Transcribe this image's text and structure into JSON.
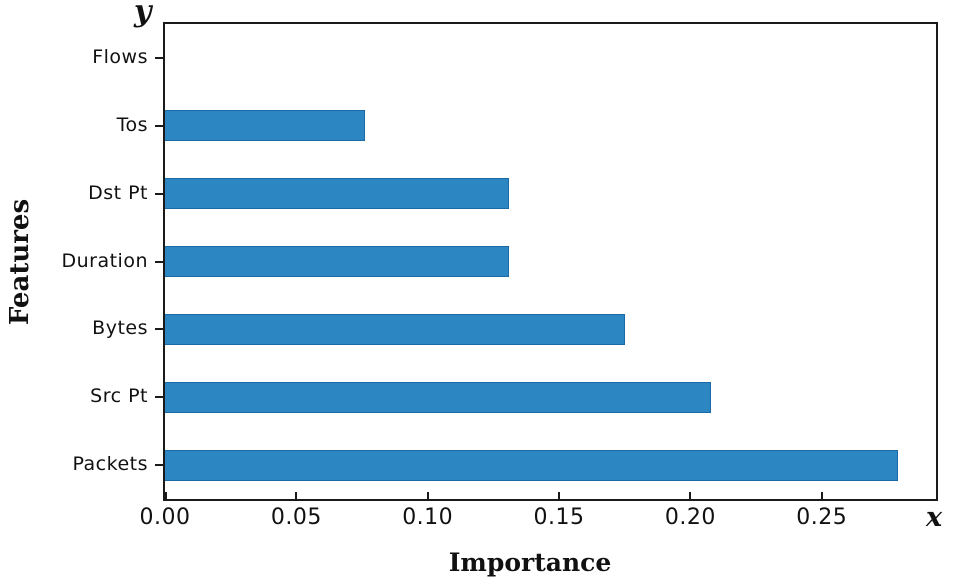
{
  "chart_data": {
    "type": "bar",
    "orientation": "horizontal",
    "xlabel": "Importance",
    "ylabel": "Features",
    "x_axis_letter": "x",
    "y_axis_letter": "y",
    "categories_top_to_bottom": [
      "Flows",
      "Tos",
      "Dst Pt",
      "Duration",
      "Bytes",
      "Src Pt",
      "Packets"
    ],
    "values": [
      0.0,
      0.076,
      0.131,
      0.131,
      0.175,
      0.208,
      0.279
    ],
    "x_ticks": [
      {
        "label": "0.00",
        "value": 0.0
      },
      {
        "label": "0.05",
        "value": 0.05
      },
      {
        "label": "0.10",
        "value": 0.1
      },
      {
        "label": "0.15",
        "value": 0.15
      },
      {
        "label": "0.20",
        "value": 0.2
      },
      {
        "label": "0.25",
        "value": 0.25
      }
    ],
    "xlim": [
      0,
      0.2935
    ],
    "grid": false,
    "colors": {
      "bar_fill": "#2b86c2",
      "bar_edge": "#1a6aa8",
      "axis": "#1a1a1a",
      "text": "#111111"
    }
  }
}
